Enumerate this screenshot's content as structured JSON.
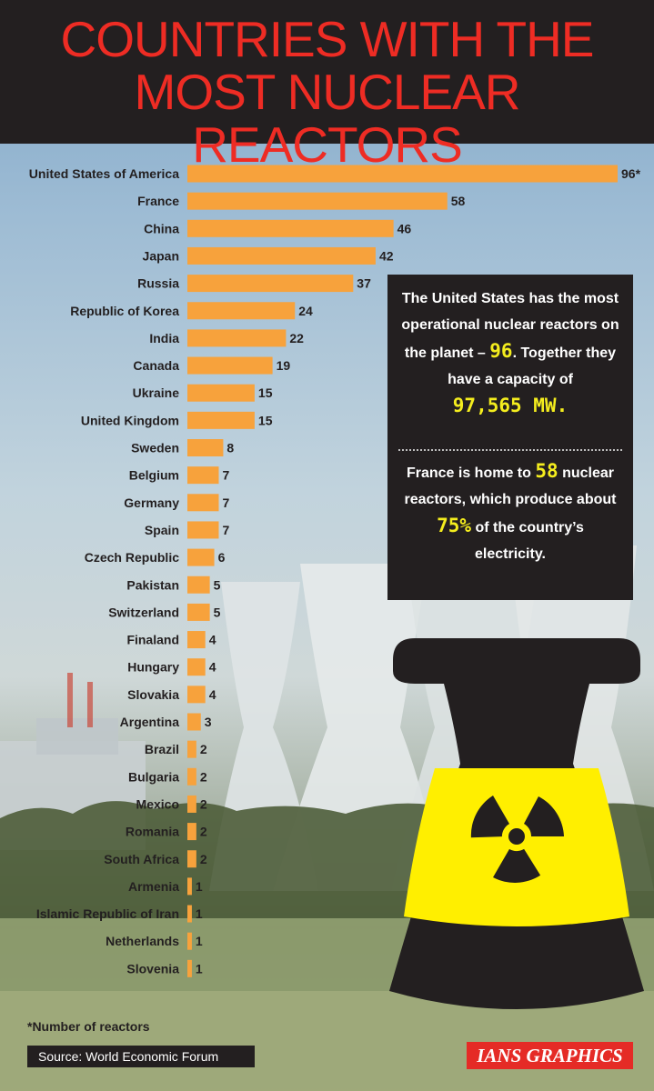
{
  "title": "COUNTRIES WITH THE\nMOST NUCLEAR REACTORS",
  "colors": {
    "bar": "#f7a23c",
    "header_bg": "#231f20",
    "title": "#ee2c24",
    "highlight": "#f4ed1e",
    "credit_bg": "#e52b26"
  },
  "chart_data": {
    "type": "bar",
    "orientation": "horizontal",
    "title": "COUNTRIES WITH THE MOST NUCLEAR REACTORS",
    "categories": [
      "United States of America",
      "France",
      "China",
      "Japan",
      "Russia",
      "Republic of Korea",
      "India",
      "Canada",
      "Ukraine",
      "United Kingdom",
      "Sweden",
      "Belgium",
      "Germany",
      "Spain",
      "Czech Republic",
      "Pakistan",
      "Switzerland",
      "Finaland",
      "Hungary",
      "Slovakia",
      "Argentina",
      "Brazil",
      "Bulgaria",
      "Mexico",
      "Romania",
      "South Africa",
      "Armenia",
      "Islamic Republic of Iran",
      "Netherlands",
      "Slovenia"
    ],
    "values": [
      96,
      58,
      46,
      42,
      37,
      24,
      22,
      19,
      15,
      15,
      8,
      7,
      7,
      7,
      6,
      5,
      5,
      4,
      4,
      4,
      3,
      2,
      2,
      2,
      2,
      2,
      1,
      1,
      1,
      1
    ],
    "value_labels": [
      "96*",
      "58",
      "46",
      "42",
      "37",
      "24",
      "22",
      "19",
      "15",
      "15",
      "8",
      "7",
      "7",
      "7",
      "6",
      "5",
      "5",
      "4",
      "4",
      "4",
      "3",
      "2",
      "2",
      "2",
      "2",
      "2",
      "1",
      "1",
      "1",
      "1"
    ],
    "xlim": [
      0,
      96
    ],
    "grid": false,
    "legend": "none"
  },
  "info": {
    "us_pre": "The United States has the most operational nuclear reactors on the planet –",
    "us_num": "96",
    "us_mid": ". Together they have a capacity of",
    "us_cap": "97,565 MW.",
    "fr_pre": "France is home to",
    "fr_num": "58",
    "fr_mid": "nuclear reactors, which produce about",
    "fr_pct": "75%",
    "fr_post": "of the country’s electricity."
  },
  "footnote": "*Number of reactors",
  "source": "Source: World Economic Forum",
  "credit": "IANS GRAPHICS",
  "icons": {
    "warning": "radiation-warning-icon"
  }
}
